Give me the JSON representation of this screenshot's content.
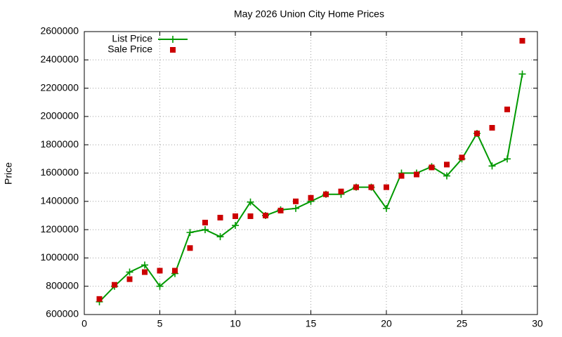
{
  "chart_data": {
    "type": "line",
    "title": "May 2026 Union City Home Prices",
    "y_label": "Price",
    "x": [
      1,
      2,
      3,
      4,
      5,
      6,
      7,
      8,
      9,
      10,
      11,
      12,
      13,
      14,
      15,
      16,
      17,
      18,
      19,
      20,
      21,
      22,
      23,
      24,
      25,
      26,
      27,
      28,
      29
    ],
    "series": [
      {
        "name": "List Price",
        "color": "#009900",
        "line": true,
        "marker": "plus",
        "values": [
          690000,
          800000,
          900000,
          950000,
          800000,
          890000,
          1180000,
          1200000,
          1150000,
          1230000,
          1395000,
          1300000,
          1340000,
          1350000,
          1400000,
          1450000,
          1450000,
          1500000,
          1500000,
          1350000,
          1600000,
          1600000,
          1645000,
          1580000,
          1700000,
          1880000,
          1650000,
          1700000,
          2300000
        ]
      },
      {
        "name": "Sale Price",
        "color": "#cc0000",
        "line": false,
        "marker": "square",
        "values": [
          710000,
          810000,
          850000,
          900000,
          910000,
          910000,
          1070000,
          1250000,
          1285000,
          1295000,
          1295000,
          1300000,
          1335000,
          1400000,
          1425000,
          1450000,
          1470000,
          1500000,
          1500000,
          1500000,
          1580000,
          1590000,
          1640000,
          1660000,
          1710000,
          1880000,
          1920000,
          2050000,
          2535000
        ]
      }
    ],
    "xlim": [
      0,
      30
    ],
    "xticks": [
      0,
      5,
      10,
      15,
      20,
      25,
      30
    ],
    "ylim": [
      600000,
      2600000
    ],
    "yticks": [
      600000,
      800000,
      1000000,
      1200000,
      1400000,
      1600000,
      1800000,
      2000000,
      2200000,
      2400000,
      2600000
    ],
    "grid": true,
    "legend": "top-left"
  }
}
